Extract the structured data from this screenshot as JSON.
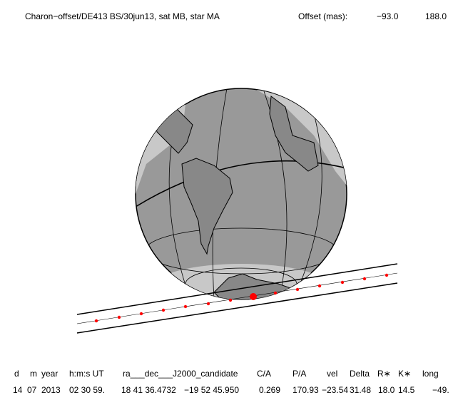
{
  "header": {
    "title": "Charon−offset/DE413 BS/30jun13, sat MB, star MA",
    "offset_label": "Offset (mas):",
    "offset_x": "−93.0",
    "offset_y": "188.0"
  },
  "table": {
    "columns": [
      "d",
      "m",
      "year",
      "h:m:s UT",
      "ra___dec___J2000_candidate",
      "C/A",
      "P/A",
      "vel",
      "Delta",
      "R∗",
      "K∗",
      "long"
    ],
    "row": [
      "14",
      "07",
      "2013",
      "02 30 59.",
      "18 41 36.4732",
      "−19 52  45.950",
      "0.269",
      "170.93",
      "−23.54",
      "31.48",
      "18.0",
      "14.5",
      "−49."
    ]
  }
}
